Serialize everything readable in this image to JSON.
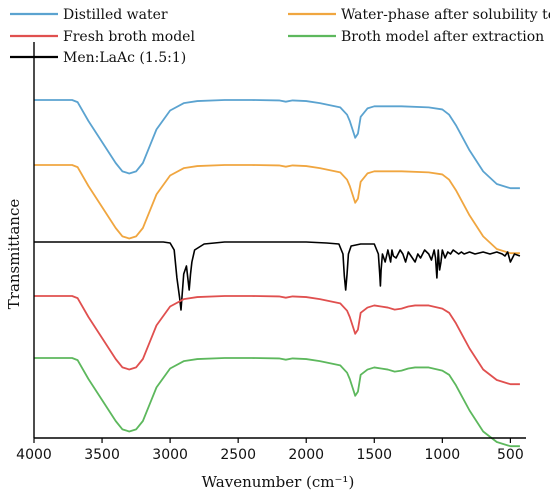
{
  "chart_data": {
    "type": "line",
    "title": "",
    "xlabel": "Wavenumber (cm⁻¹)",
    "ylabel": "Transmittance",
    "xlim": [
      4000,
      400
    ],
    "x_reversed": true,
    "x_ticks": [
      4000,
      3500,
      3000,
      2500,
      2000,
      1500,
      1000,
      500
    ],
    "y_ticks_shown": false,
    "grid": false,
    "legend_position": "top",
    "y_unit_note": "relative transmittance; curves offset vertically",
    "series": [
      {
        "name": "Distilled water",
        "color": "#5ba3d0",
        "x": [
          4000,
          3720,
          3680,
          3600,
          3500,
          3400,
          3350,
          3300,
          3250,
          3200,
          3150,
          3100,
          3000,
          2900,
          2800,
          2600,
          2400,
          2200,
          2150,
          2100,
          2000,
          1900,
          1750,
          1700,
          1680,
          1660,
          1640,
          1620,
          1600,
          1550,
          1500,
          1300,
          1100,
          1000,
          950,
          900,
          850,
          800,
          700,
          600,
          500,
          430
        ],
        "y": [
          0.92,
          0.92,
          0.91,
          0.82,
          0.72,
          0.62,
          0.58,
          0.57,
          0.58,
          0.62,
          0.7,
          0.78,
          0.87,
          0.905,
          0.915,
          0.92,
          0.92,
          0.918,
          0.912,
          0.918,
          0.915,
          0.905,
          0.885,
          0.85,
          0.82,
          0.78,
          0.74,
          0.76,
          0.84,
          0.88,
          0.89,
          0.89,
          0.885,
          0.875,
          0.85,
          0.8,
          0.74,
          0.68,
          0.58,
          0.52,
          0.5,
          0.5
        ]
      },
      {
        "name": "Water-phase after solubility test",
        "color": "#f0a640",
        "x": [
          4000,
          3720,
          3680,
          3600,
          3500,
          3400,
          3350,
          3300,
          3250,
          3200,
          3150,
          3100,
          3000,
          2900,
          2800,
          2600,
          2400,
          2200,
          2150,
          2100,
          2000,
          1900,
          1750,
          1700,
          1680,
          1660,
          1640,
          1620,
          1600,
          1550,
          1500,
          1300,
          1100,
          1000,
          950,
          900,
          850,
          800,
          700,
          600,
          500,
          430
        ],
        "y": [
          0.92,
          0.92,
          0.91,
          0.82,
          0.72,
          0.62,
          0.58,
          0.57,
          0.58,
          0.62,
          0.7,
          0.78,
          0.87,
          0.905,
          0.915,
          0.92,
          0.92,
          0.918,
          0.912,
          0.918,
          0.915,
          0.905,
          0.885,
          0.85,
          0.82,
          0.78,
          0.74,
          0.76,
          0.84,
          0.88,
          0.89,
          0.89,
          0.885,
          0.875,
          0.85,
          0.8,
          0.74,
          0.68,
          0.58,
          0.52,
          0.5,
          0.5
        ]
      },
      {
        "name": "Men:LaAc (1.5:1)",
        "color": "#000000",
        "x": [
          4000,
          3600,
          3400,
          3200,
          3050,
          3000,
          2970,
          2950,
          2930,
          2920,
          2900,
          2880,
          2870,
          2860,
          2850,
          2840,
          2820,
          2750,
          2600,
          2400,
          2200,
          2000,
          1850,
          1760,
          1730,
          1720,
          1710,
          1700,
          1690,
          1670,
          1600,
          1500,
          1470,
          1460,
          1455,
          1450,
          1440,
          1420,
          1400,
          1380,
          1370,
          1360,
          1340,
          1310,
          1290,
          1270,
          1250,
          1230,
          1200,
          1180,
          1160,
          1130,
          1100,
          1080,
          1060,
          1050,
          1040,
          1030,
          1020,
          1010,
          1000,
          980,
          960,
          940,
          920,
          900,
          880,
          860,
          840,
          800,
          760,
          700,
          650,
          600,
          560,
          540,
          520,
          500,
          470,
          430
        ],
        "y": [
          0.9,
          0.9,
          0.9,
          0.9,
          0.9,
          0.895,
          0.86,
          0.72,
          0.62,
          0.56,
          0.74,
          0.78,
          0.72,
          0.66,
          0.74,
          0.8,
          0.86,
          0.89,
          0.9,
          0.9,
          0.9,
          0.9,
          0.895,
          0.89,
          0.84,
          0.73,
          0.66,
          0.74,
          0.84,
          0.88,
          0.89,
          0.89,
          0.84,
          0.74,
          0.68,
          0.76,
          0.84,
          0.8,
          0.86,
          0.8,
          0.86,
          0.83,
          0.82,
          0.86,
          0.84,
          0.8,
          0.85,
          0.83,
          0.8,
          0.84,
          0.82,
          0.86,
          0.84,
          0.81,
          0.86,
          0.82,
          0.72,
          0.86,
          0.76,
          0.8,
          0.86,
          0.82,
          0.85,
          0.84,
          0.86,
          0.85,
          0.84,
          0.85,
          0.84,
          0.85,
          0.84,
          0.85,
          0.84,
          0.85,
          0.84,
          0.83,
          0.85,
          0.8,
          0.84,
          0.83
        ]
      },
      {
        "name": "Fresh broth model",
        "color": "#e0504f",
        "x": [
          4000,
          3720,
          3680,
          3600,
          3500,
          3400,
          3350,
          3300,
          3250,
          3200,
          3150,
          3100,
          3000,
          2900,
          2800,
          2600,
          2400,
          2200,
          2150,
          2100,
          2000,
          1900,
          1750,
          1700,
          1680,
          1660,
          1640,
          1620,
          1600,
          1550,
          1500,
          1450,
          1400,
          1350,
          1300,
          1250,
          1200,
          1100,
          1000,
          950,
          900,
          850,
          800,
          700,
          600,
          500,
          430
        ],
        "y": [
          0.92,
          0.92,
          0.91,
          0.82,
          0.72,
          0.62,
          0.58,
          0.57,
          0.58,
          0.62,
          0.7,
          0.78,
          0.87,
          0.905,
          0.915,
          0.92,
          0.92,
          0.918,
          0.912,
          0.918,
          0.915,
          0.905,
          0.885,
          0.85,
          0.82,
          0.78,
          0.74,
          0.76,
          0.84,
          0.865,
          0.875,
          0.87,
          0.865,
          0.855,
          0.86,
          0.87,
          0.875,
          0.875,
          0.86,
          0.84,
          0.79,
          0.73,
          0.67,
          0.57,
          0.52,
          0.5,
          0.5
        ]
      },
      {
        "name": "Broth model after extraction",
        "color": "#5db85d",
        "x": [
          4000,
          3720,
          3680,
          3600,
          3500,
          3400,
          3350,
          3300,
          3250,
          3200,
          3150,
          3100,
          3000,
          2900,
          2800,
          2600,
          2400,
          2200,
          2150,
          2100,
          2000,
          1900,
          1750,
          1700,
          1680,
          1660,
          1640,
          1620,
          1600,
          1550,
          1500,
          1450,
          1400,
          1350,
          1300,
          1250,
          1200,
          1100,
          1000,
          950,
          900,
          850,
          800,
          700,
          600,
          500,
          430
        ],
        "y": [
          0.92,
          0.92,
          0.91,
          0.82,
          0.72,
          0.62,
          0.58,
          0.57,
          0.58,
          0.62,
          0.7,
          0.78,
          0.87,
          0.905,
          0.915,
          0.92,
          0.92,
          0.918,
          0.912,
          0.918,
          0.915,
          0.905,
          0.885,
          0.85,
          0.82,
          0.78,
          0.74,
          0.76,
          0.84,
          0.865,
          0.875,
          0.87,
          0.865,
          0.855,
          0.86,
          0.87,
          0.875,
          0.875,
          0.86,
          0.84,
          0.79,
          0.73,
          0.67,
          0.57,
          0.52,
          0.5,
          0.5
        ]
      }
    ]
  }
}
